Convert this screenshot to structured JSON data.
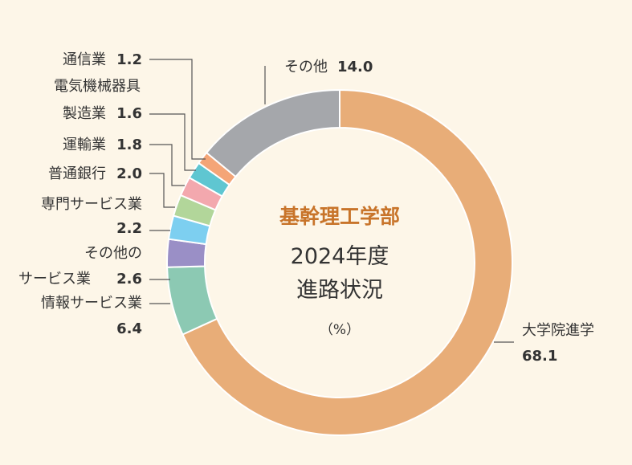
{
  "chart_data": {
    "type": "pie",
    "center": {
      "subtitle": "基幹理工学部",
      "title_line1": "2024年度",
      "title_line2": "進路状況",
      "unit": "（%）"
    },
    "slices": [
      {
        "label_lines": [
          "大学院進学"
        ],
        "value": 68.1,
        "value_text": "68.1",
        "color": "#e8ad78"
      },
      {
        "label_lines": [
          "情報サービス業"
        ],
        "value": 6.4,
        "value_text": "6.4",
        "color": "#8cc9b3"
      },
      {
        "label_lines": [
          "その他の",
          "サービス業"
        ],
        "value": 2.6,
        "value_text": "2.6",
        "color": "#9a8fc6"
      },
      {
        "label_lines": [
          "専門サービス業"
        ],
        "value": 2.2,
        "value_text": "2.2",
        "color": "#7dcff0"
      },
      {
        "label_lines": [
          "普通銀行"
        ],
        "value": 2.0,
        "value_text": "2.0",
        "color": "#b2d69a"
      },
      {
        "label_lines": [
          "運輸業"
        ],
        "value": 1.8,
        "value_text": "1.8",
        "color": "#f3a8ae"
      },
      {
        "label_lines": [
          "電気機械器具",
          "製造業"
        ],
        "value": 1.6,
        "value_text": "1.6",
        "color": "#5fc6d1"
      },
      {
        "label_lines": [
          "通信業"
        ],
        "value": 1.2,
        "value_text": "1.2",
        "color": "#f4a577"
      },
      {
        "label_lines": [
          "その他"
        ],
        "value": 14.0,
        "value_text": "14.0",
        "color": "#a5a7ab"
      }
    ]
  }
}
